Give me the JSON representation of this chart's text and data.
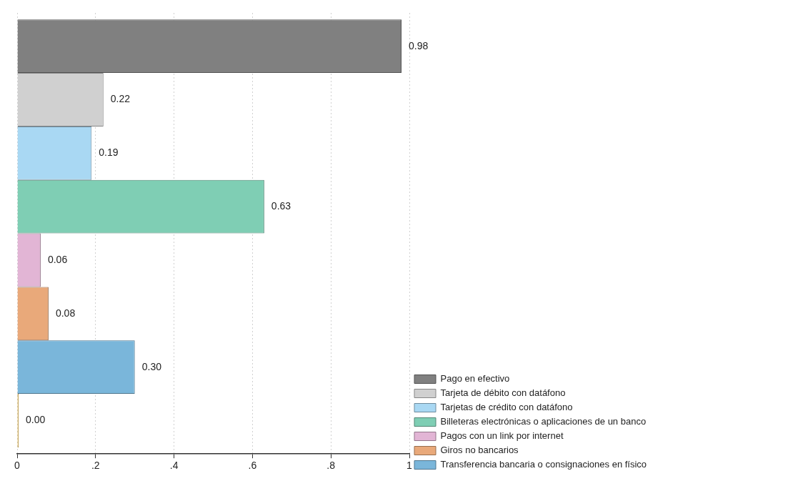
{
  "chart_data": {
    "type": "bar",
    "orientation": "horizontal",
    "categories": [
      null
    ],
    "series": [
      {
        "name": "Pago en efectivo",
        "color": "#808080",
        "values": [
          0.98
        ],
        "value_labels": [
          "0.98"
        ]
      },
      {
        "name": "Tarjeta de débito con datáfono",
        "color": "#d0d0d0",
        "values": [
          0.22
        ],
        "value_labels": [
          "0.22"
        ]
      },
      {
        "name": "Tarjetas de crédito con datáfono",
        "color": "#a9d8f3",
        "values": [
          0.19
        ],
        "value_labels": [
          "0.19"
        ]
      },
      {
        "name": "Billeteras electrónicas o aplicaciones de un banco",
        "color": "#7fceb4",
        "values": [
          0.63
        ],
        "value_labels": [
          "0.63"
        ]
      },
      {
        "name": "Pagos con un link por internet",
        "color": "#e2b5d5",
        "values": [
          0.06
        ],
        "value_labels": [
          "0.06"
        ]
      },
      {
        "name": "Giros no bancarios",
        "color": "#e9a97a",
        "values": [
          0.08
        ],
        "value_labels": [
          "0.08"
        ]
      },
      {
        "name": "Transferencia bancaria o consignaciones en físico",
        "color": "#7ab6da",
        "values": [
          0.3
        ],
        "value_labels": [
          "0.30"
        ]
      },
      {
        "color": "#f2c14e",
        "values": [
          0
        ],
        "value_labels": [
          "0.00"
        ]
      }
    ],
    "xlim": [
      0,
      1
    ],
    "xticks": [
      0,
      {
        "value": 0.2,
        "label": ".2"
      },
      {
        "value": 0.4,
        "label": ".4"
      },
      {
        "value": 0.6,
        "label": ".6"
      },
      {
        "value": 0.8,
        "label": ".8"
      },
      1
    ],
    "grid": "x",
    "legend": "right",
    "tick_labels": "x"
  }
}
